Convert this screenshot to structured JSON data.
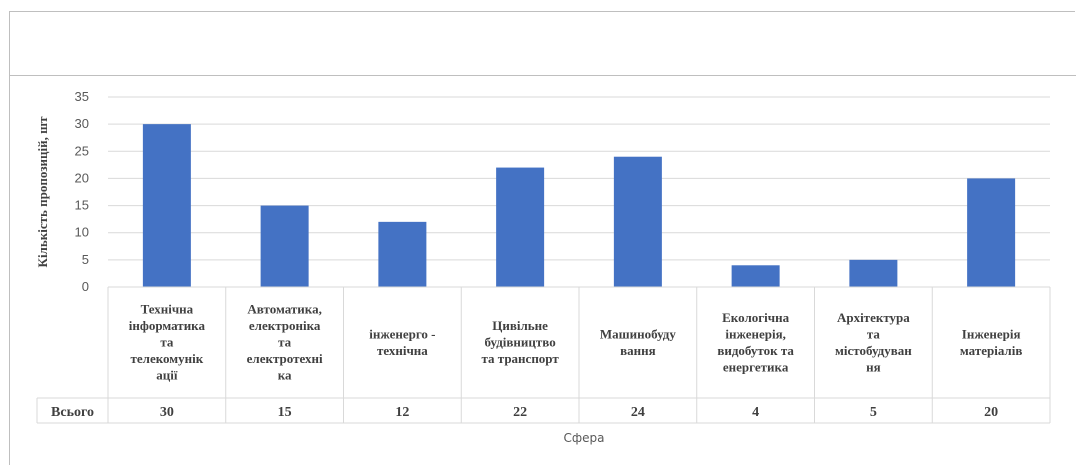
{
  "chart_data": {
    "type": "bar",
    "title": "",
    "xlabel": "Сфера",
    "ylabel": "Кількість пропозицій, шт",
    "ylim": [
      0,
      35
    ],
    "yticks": [
      0,
      5,
      10,
      15,
      20,
      25,
      30,
      35
    ],
    "grid": true,
    "legend": "none",
    "bar_color": "#4472c4",
    "categories": [
      [
        "Технічна",
        "інформатика",
        "та",
        "телекомунік",
        "ації"
      ],
      [
        "Автоматика,",
        "електроніка",
        "та",
        "електротехні",
        "ка"
      ],
      [
        "інженерго -",
        "технічна"
      ],
      [
        "Цивільне",
        "будівництво",
        "та транспорт"
      ],
      [
        "Машинобуду",
        "вання"
      ],
      [
        "Екологічна",
        "інженерія,",
        "видобуток та",
        "енергетика"
      ],
      [
        "Архітектура",
        "та",
        "містобудуван",
        "ня"
      ],
      [
        "Інженерія",
        "матеріалів"
      ]
    ],
    "series": [
      {
        "table_label": "Всього",
        "values": [
          30,
          15,
          12,
          22,
          24,
          4,
          5,
          20
        ]
      }
    ]
  }
}
